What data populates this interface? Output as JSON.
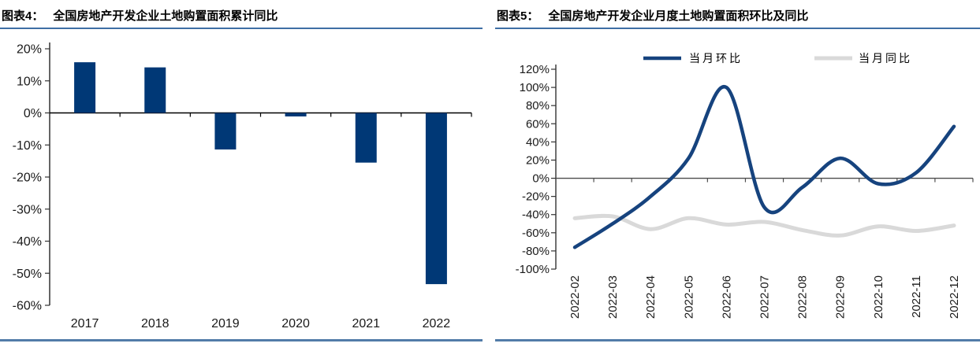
{
  "page": {
    "background": "#ffffff"
  },
  "styles": {
    "title_underline_color": "#3E6FA5",
    "footer_rule_color": "#527CA8",
    "axis_text_color": "#1a1a1a",
    "axis_line_color": "#333333"
  },
  "panels": [
    {
      "title_prefix": "图表4：",
      "title": "全国房地产开发企业土地购置面积累计同比"
    },
    {
      "title_prefix": "图表5：",
      "title": "全国房地产开发企业月度土地购置面积环比及同比"
    }
  ],
  "chart_data": [
    {
      "type": "bar",
      "title": "全国房地产开发企业土地购置面积累计同比",
      "categories": [
        "2017",
        "2018",
        "2019",
        "2020",
        "2021",
        "2022"
      ],
      "values": [
        15.8,
        14.2,
        -11.4,
        -1.1,
        -15.5,
        -53.4
      ],
      "value_unit": "%",
      "ylim": [
        -60,
        20
      ],
      "ytick_step": 10,
      "ytick_labels": [
        "20%",
        "10%",
        "0%",
        "-10%",
        "-20%",
        "-30%",
        "-40%",
        "-50%",
        "-60%"
      ],
      "bar_color": "#003876",
      "grid": false,
      "legend": false
    },
    {
      "type": "line",
      "title": "全国房地产开发企业月度土地购置面积环比及同比",
      "x": [
        "2022-02",
        "2022-03",
        "2022-04",
        "2022-05",
        "2022-06",
        "2022-07",
        "2022-08",
        "2022-09",
        "2022-10",
        "2022-11",
        "2022-12"
      ],
      "series": [
        {
          "name": "当月环比",
          "color": "#16437E",
          "stroke_width": 4.5,
          "values": [
            -76,
            -50,
            -20,
            22,
            100,
            -32,
            -10,
            22,
            -6,
            6,
            57
          ]
        },
        {
          "name": "当月同比",
          "color": "#D9D9D9",
          "stroke_width": 5,
          "values": [
            -44,
            -42,
            -56,
            -44,
            -51,
            -48,
            -57,
            -63,
            -53,
            -58,
            -52
          ]
        }
      ],
      "value_unit": "%",
      "ylim": [
        -100,
        120
      ],
      "ytick_step": 20,
      "ytick_labels": [
        "120%",
        "100%",
        "80%",
        "60%",
        "40%",
        "20%",
        "0%",
        "-20%",
        "-40%",
        "-60%",
        "-80%",
        "-100%"
      ],
      "smooth": true,
      "grid": false,
      "legend_position": "top"
    }
  ]
}
